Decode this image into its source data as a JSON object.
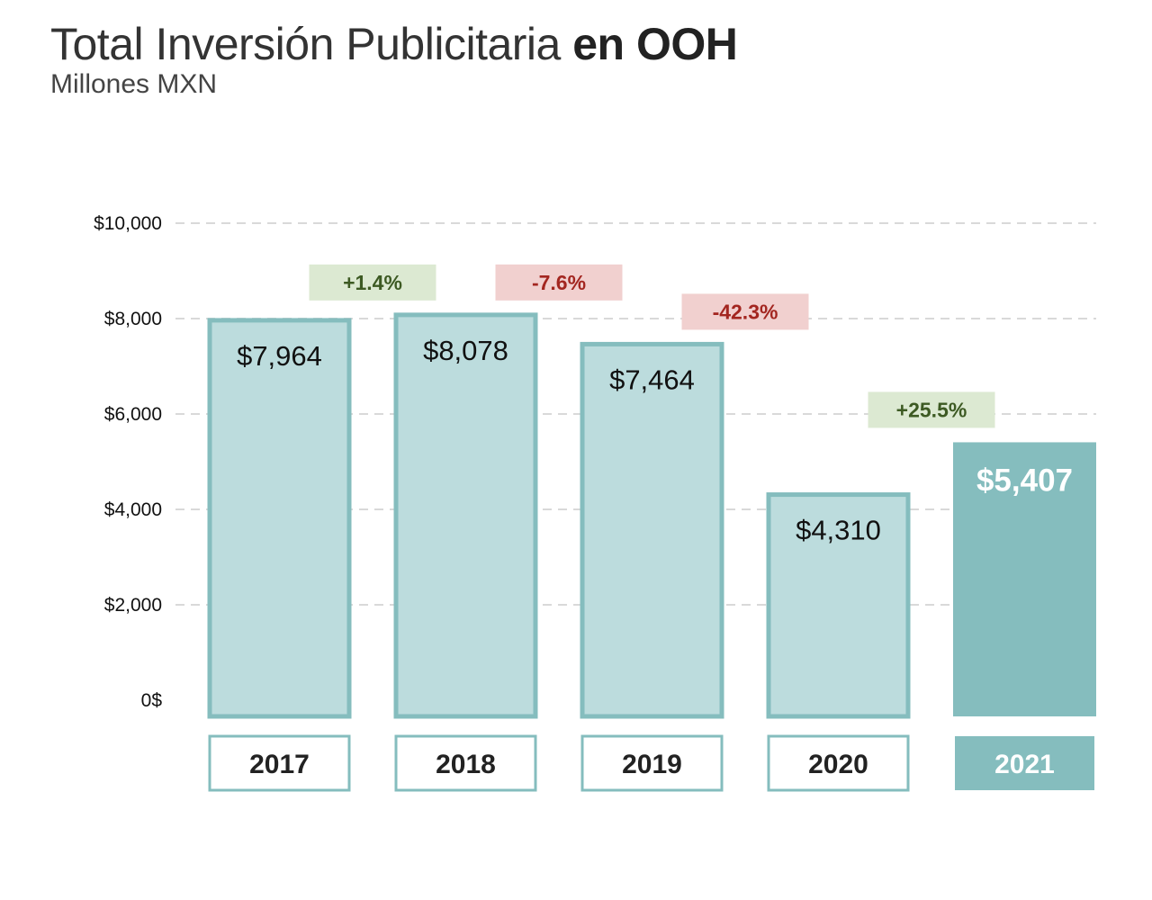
{
  "title": {
    "main": "Total Inversión Publicitaria ",
    "emphasis": "en OOH",
    "subtitle": "Millones MXN"
  },
  "colors": {
    "bar_fill": "#bcdcdd",
    "bar_border": "#85bdbe",
    "bar_highlight": "#85bdbe",
    "grid": "#d9d9d9",
    "positive_bg": "#dce9d2",
    "positive_text": "#3d5a23",
    "negative_bg": "#f1d0cf",
    "negative_text": "#a32620"
  },
  "chart_data": {
    "type": "bar",
    "title": "Total Inversión Publicitaria en OOH",
    "subtitle": "Millones MXN",
    "categories": [
      "2017",
      "2018",
      "2019",
      "2020",
      "2021"
    ],
    "values": [
      7964,
      8078,
      7464,
      4310,
      5407
    ],
    "value_labels": [
      "$7,964",
      "$8,078",
      "$7,464",
      "$4,310",
      "$5,407"
    ],
    "highlight_index": 4,
    "changes": [
      {
        "from": "2017",
        "to": "2018",
        "label": "+1.4%",
        "direction": "up"
      },
      {
        "from": "2018",
        "to": "2019",
        "label": "-7.6%",
        "direction": "down"
      },
      {
        "from": "2019",
        "to": "2020",
        "label": "-42.3%",
        "direction": "down"
      },
      {
        "from": "2020",
        "to": "2021",
        "label": "+25.5%",
        "direction": "up"
      }
    ],
    "ylim": [
      0,
      10000
    ],
    "yticks": [
      0,
      2000,
      4000,
      6000,
      8000,
      10000
    ],
    "ytick_labels": [
      "0$",
      "$2,000",
      "$4,000",
      "$6,000",
      "$8,000",
      "$10,000"
    ],
    "grid": true,
    "legend": "none"
  }
}
